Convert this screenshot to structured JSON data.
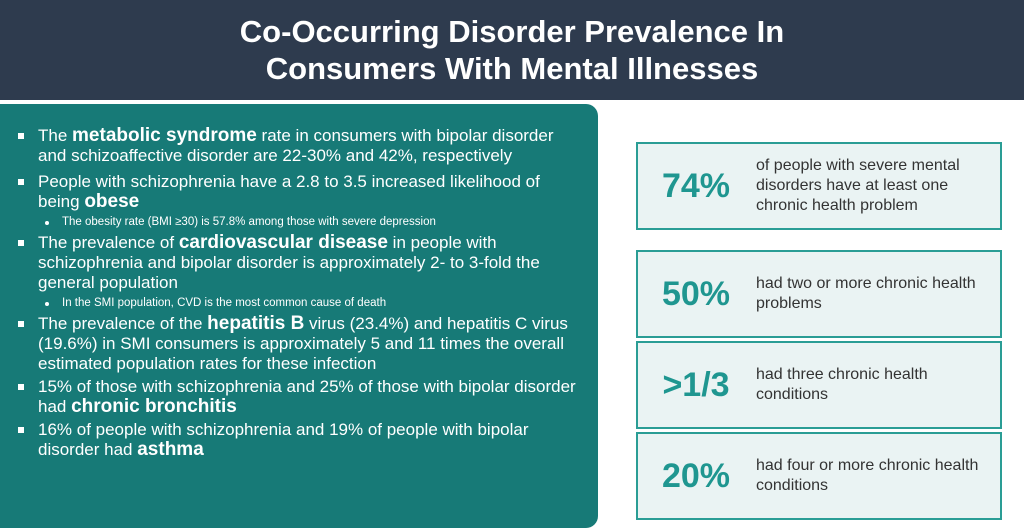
{
  "header": {
    "title_line1": "Co-Occurring Disorder Prevalence In",
    "title_line2": "Consumers With Mental Illnesses"
  },
  "bullets": [
    {
      "pre": "The ",
      "bold": "metabolic syndrome",
      "post": " rate in consumers with bipolar disorder and schizoaffective disorder are 22-30% and 42%, respectively"
    },
    {
      "pre": "People with schizophrenia have a 2.8 to 3.5 increased likelihood of being ",
      "bold": "obese",
      "post": "",
      "sub": "The obesity rate (BMI ≥30) is 57.8% among those with severe depression"
    },
    {
      "pre": "The prevalence of ",
      "bold": "cardiovascular disease",
      "post": " in people with schizophrenia and bipolar disorder is approximately 2- to 3-fold the general population",
      "sub": "In the SMI population, CVD is the most common cause of death"
    },
    {
      "pre": "The prevalence of the ",
      "bold": "hepatitis B",
      "post": " virus (23.4%) and hepatitis C virus (19.6%) in SMI consumers is approximately 5 and 11 times the overall estimated population rates for these infection"
    },
    {
      "pre": "15% of those with schizophrenia and 25% of those with bipolar disorder had ",
      "bold": "chronic bronchitis",
      "post": ""
    },
    {
      "pre": "16% of people with schizophrenia and 19% of people with bipolar disorder had ",
      "bold": "asthma",
      "post": ""
    }
  ],
  "stats": [
    {
      "value": "74%",
      "desc": "of people with severe mental disorders have at least one chronic health problem"
    },
    {
      "value": "50%",
      "desc": "had two or more chronic health problems"
    },
    {
      "value": ">1/3",
      "desc": "had three chronic health conditions"
    },
    {
      "value": "20%",
      "desc": "had four or more chronic health conditions"
    }
  ]
}
